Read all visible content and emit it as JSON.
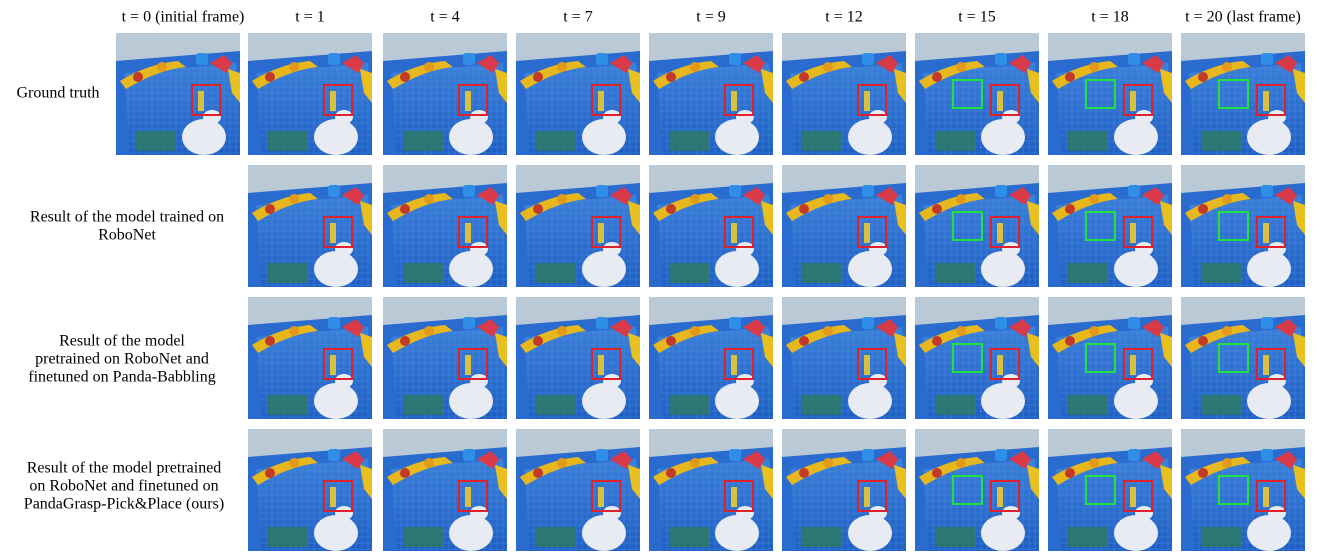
{
  "figure": {
    "column_headers": [
      "t = 0 (initial frame)",
      "t = 1",
      "t = 4",
      "t = 7",
      "t = 9",
      "t = 12",
      "t = 15",
      "t = 18",
      "t = 20 (last frame)"
    ],
    "rows": [
      {
        "label_lines": [
          "Ground truth"
        ]
      },
      {
        "label_lines": [
          "Result of the model trained on",
          "RoboNet"
        ]
      },
      {
        "label_lines": [
          "Result of the model",
          "pretrained on RoboNet and",
          "finetuned on Panda-Babbling"
        ]
      },
      {
        "label_lines": [
          "Result of the model pretrained",
          "on RoboNet and finetuned on",
          "PandaGrasp-Pick&Place (ours)"
        ]
      }
    ]
  }
}
